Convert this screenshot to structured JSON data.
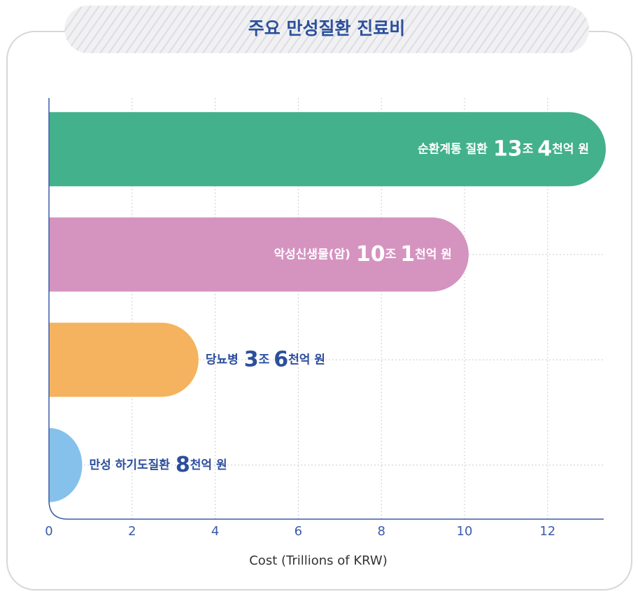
{
  "chart_data": {
    "type": "barh",
    "title": "주요 만성질환 진료비",
    "xlabel": "Cost (Trillions of KRW)",
    "categories": [
      "순환계통 질환",
      "악성신생물(암)",
      "당뇨병",
      "만성 하기도질환"
    ],
    "values": [
      13.4,
      10.1,
      3.6,
      0.8
    ],
    "value_labels": [
      "13조 4천억 원",
      "10조 1천억 원",
      "3조 6천억 원",
      "8천억 원"
    ],
    "colors": [
      "#43b18c",
      "#d593c0",
      "#f5b35f",
      "#86c1eb"
    ],
    "xlim": [
      0,
      13.35
    ],
    "xticks": [
      0,
      2,
      4,
      6,
      8,
      10,
      12
    ],
    "grid": true
  }
}
